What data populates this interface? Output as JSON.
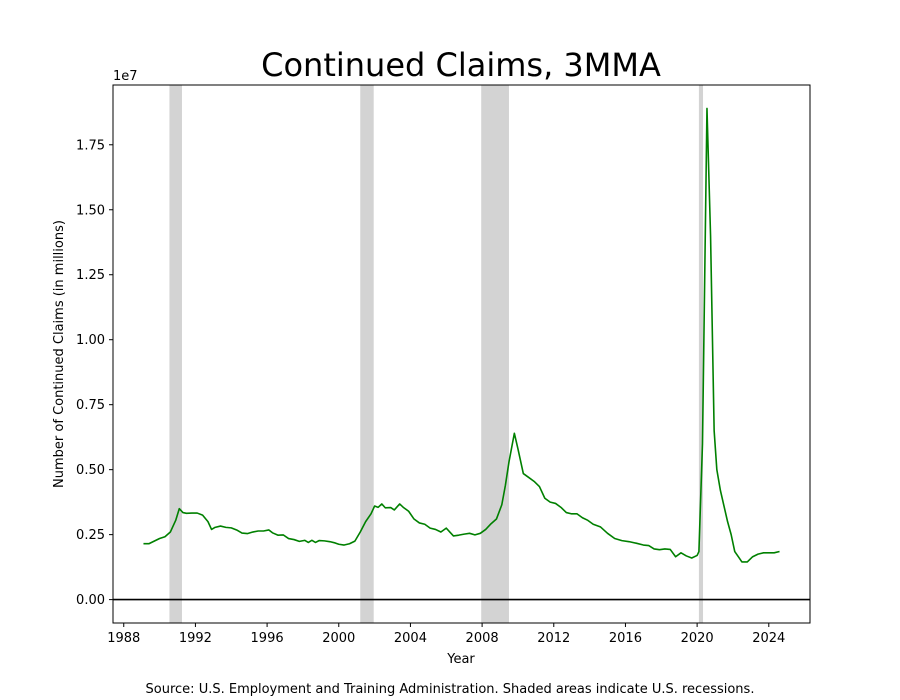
{
  "chart_data": {
    "type": "line",
    "title": "Continued Claims, 3MMA",
    "xlabel": "Year",
    "ylabel": "Number of Continued Claims (in millions)",
    "y_scale_label": "1e7",
    "y_scale": 10000000,
    "source_note": "Source: U.S. Employment and Training Administration. Shaded areas indicate U.S. recessions.",
    "xlim": [
      1987.4,
      2026.3
    ],
    "ylim": [
      -900000,
      19800000
    ],
    "x_ticks": [
      1988,
      1992,
      1996,
      2000,
      2004,
      2008,
      2012,
      2016,
      2020,
      2024
    ],
    "x_tick_labels": [
      "1988",
      "1992",
      "1996",
      "2000",
      "2004",
      "2008",
      "2012",
      "2016",
      "2020",
      "2024"
    ],
    "y_ticks": [
      0,
      2500000,
      5000000,
      7500000,
      10000000,
      12500000,
      15000000,
      17500000
    ],
    "y_tick_labels": [
      "0.00",
      "0.25",
      "0.50",
      "0.75",
      "1.00",
      "1.25",
      "1.50",
      "1.75"
    ],
    "grid": false,
    "zero_line": true,
    "line_color": "#008000",
    "recession_color": "#d3d3d3",
    "recessions": [
      {
        "start": 1990.55,
        "end": 1991.25
      },
      {
        "start": 2001.2,
        "end": 2001.95
      },
      {
        "start": 2007.95,
        "end": 2009.5
      },
      {
        "start": 2020.1,
        "end": 2020.33
      }
    ],
    "series": [
      {
        "x": [
          1989.1,
          1989.4,
          1989.7,
          1990.0,
          1990.3,
          1990.6,
          1990.9,
          1991.1,
          1991.3,
          1991.5,
          1991.8,
          1992.1,
          1992.4,
          1992.7,
          1992.9,
          1993.1,
          1993.4,
          1993.7,
          1994.0,
          1994.3,
          1994.6,
          1994.9,
          1995.2,
          1995.5,
          1995.8,
          1996.1,
          1996.3,
          1996.6,
          1996.9,
          1997.2,
          1997.5,
          1997.8,
          1998.1,
          1998.3,
          1998.5,
          1998.7,
          1998.9,
          1999.2,
          1999.5,
          1999.8,
          2000.0,
          2000.3,
          2000.6,
          2000.9,
          2001.2,
          2001.5,
          2001.8,
          2002.0,
          2002.2,
          2002.4,
          2002.6,
          2002.9,
          2003.1,
          2003.4,
          2003.6,
          2003.9,
          2004.2,
          2004.5,
          2004.8,
          2005.1,
          2005.4,
          2005.7,
          2006.0,
          2006.2,
          2006.4,
          2006.7,
          2007.0,
          2007.3,
          2007.6,
          2007.9,
          2008.2,
          2008.5,
          2008.8,
          2009.1,
          2009.3,
          2009.5,
          2009.8,
          2010.0,
          2010.3,
          2010.6,
          2010.9,
          2011.2,
          2011.5,
          2011.8,
          2012.1,
          2012.4,
          2012.7,
          2013.0,
          2013.3,
          2013.6,
          2013.9,
          2014.2,
          2014.6,
          2015.0,
          2015.4,
          2015.8,
          2016.2,
          2016.6,
          2017.0,
          2017.3,
          2017.6,
          2017.9,
          2018.2,
          2018.5,
          2018.8,
          2019.1,
          2019.4,
          2019.7,
          2020.0,
          2020.1,
          2020.3,
          2020.55,
          2020.75,
          2020.95,
          2021.1,
          2021.3,
          2021.5,
          2021.7,
          2021.9,
          2022.1,
          2022.3,
          2022.5,
          2022.8,
          2023.1,
          2023.4,
          2023.7,
          2024.0,
          2024.3,
          2024.6
        ],
        "values": [
          2150000,
          2150000,
          2250000,
          2350000,
          2420000,
          2600000,
          3050000,
          3500000,
          3350000,
          3320000,
          3330000,
          3330000,
          3250000,
          3000000,
          2700000,
          2780000,
          2830000,
          2780000,
          2760000,
          2680000,
          2560000,
          2540000,
          2600000,
          2640000,
          2640000,
          2680000,
          2570000,
          2480000,
          2490000,
          2350000,
          2310000,
          2240000,
          2280000,
          2200000,
          2280000,
          2200000,
          2270000,
          2260000,
          2230000,
          2180000,
          2130000,
          2100000,
          2150000,
          2250000,
          2600000,
          3000000,
          3300000,
          3600000,
          3550000,
          3680000,
          3530000,
          3540000,
          3450000,
          3680000,
          3550000,
          3400000,
          3100000,
          2950000,
          2900000,
          2750000,
          2700000,
          2600000,
          2750000,
          2600000,
          2450000,
          2480000,
          2520000,
          2550000,
          2490000,
          2550000,
          2700000,
          2920000,
          3100000,
          3650000,
          4400000,
          5300000,
          6400000,
          5800000,
          4850000,
          4700000,
          4550000,
          4350000,
          3900000,
          3750000,
          3700000,
          3550000,
          3350000,
          3300000,
          3300000,
          3150000,
          3050000,
          2900000,
          2800000,
          2550000,
          2350000,
          2270000,
          2230000,
          2170000,
          2100000,
          2080000,
          1950000,
          1920000,
          1950000,
          1930000,
          1650000,
          1800000,
          1680000,
          1600000,
          1700000,
          1850000,
          6000000,
          18900000,
          14000000,
          6500000,
          5000000,
          4200000,
          3600000,
          3000000,
          2500000,
          1850000,
          1650000,
          1450000,
          1450000,
          1650000,
          1750000,
          1800000,
          1800000,
          1800000,
          1850000
        ]
      }
    ]
  }
}
